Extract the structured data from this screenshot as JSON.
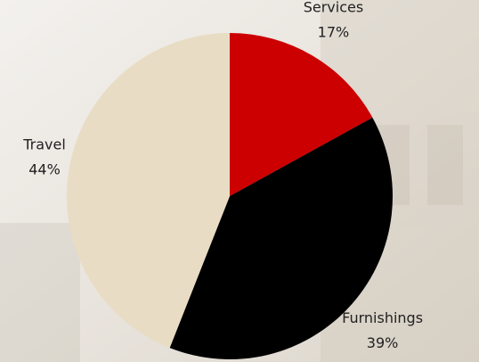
{
  "chart_data": {
    "type": "pie",
    "categories": [
      "Services",
      "Furnishings",
      "Travel"
    ],
    "values": [
      17,
      39,
      44
    ],
    "value_labels": [
      "17%",
      "39%",
      "44%"
    ],
    "colors": [
      "#cc0000",
      "#000000",
      "#e8dcc4"
    ]
  }
}
